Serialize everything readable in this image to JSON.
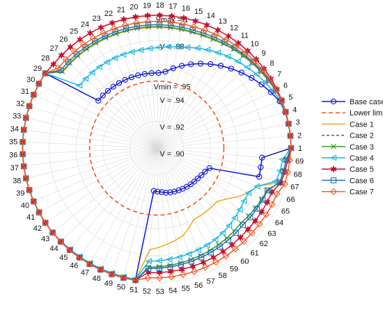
{
  "chart_data": {
    "type": "polar-line",
    "title": "",
    "theta_labels": [
      "1",
      "2",
      "3",
      "4",
      "5",
      "6",
      "7",
      "8",
      "9",
      "10",
      "11",
      "12",
      "13",
      "14",
      "15",
      "16",
      "17",
      "18",
      "19",
      "20",
      "21",
      "22",
      "23",
      "24",
      "25",
      "26",
      "27",
      "28",
      "29",
      "30",
      "31",
      "32",
      "33",
      "34",
      "35",
      "36",
      "37",
      "38",
      "39",
      "40",
      "41",
      "42",
      "43",
      "44",
      "45",
      "46",
      "47",
      "48",
      "49",
      "50",
      "51",
      "52",
      "53",
      "54",
      "55",
      "56",
      "57",
      "58",
      "59",
      "60",
      "61",
      "62",
      "63",
      "64",
      "65",
      "66",
      "67",
      "68",
      "69"
    ],
    "rlim": [
      0.9,
      1.0
    ],
    "ring_labels": [
      {
        "value": 1.0,
        "text": "Vmax = 1"
      },
      {
        "value": 0.98,
        "text": "V = .98"
      },
      {
        "value": 0.95,
        "text": "Vmin = .95"
      },
      {
        "value": 0.94,
        "text": "V = .94"
      },
      {
        "value": 0.92,
        "text": "V = .92"
      },
      {
        "value": 0.9,
        "text": "V = .90"
      }
    ],
    "grid": true,
    "legend_position": "right",
    "series": [
      {
        "name": "Base case",
        "color": "#0a14d8",
        "marker": "circle",
        "dash": "",
        "values": [
          1,
          0.9999,
          0.9997,
          0.9993,
          0.9979,
          0.9946,
          0.9913,
          0.9879,
          0.9845,
          0.9811,
          0.9777,
          0.9743,
          0.9709,
          0.9675,
          0.9641,
          0.9607,
          0.9573,
          0.956,
          0.956,
          0.956,
          0.956,
          0.956,
          0.956,
          0.956,
          0.956,
          0.956,
          0.956,
          0.956,
          0.9999,
          0.9999,
          0.9998,
          0.9998,
          0.9998,
          0.9998,
          0.9998,
          0.9998,
          0.9998,
          0.9998,
          0.9998,
          0.9998,
          0.9998,
          0.9998,
          0.9998,
          0.9998,
          0.9998,
          0.9998,
          0.9998,
          0.9998,
          0.9998,
          0.9998,
          0.9998,
          0.932,
          0.9325,
          0.933,
          0.934,
          0.9345,
          0.935,
          0.9355,
          0.936,
          0.9365,
          0.937,
          0.9375,
          0.938,
          0.939,
          0.94,
          0.942,
          0.9792,
          0.9787,
          0.9787
        ]
      },
      {
        "name": "Lower limit",
        "color": "#f0531f",
        "marker": "",
        "dash": "6,4",
        "values": [
          0.95,
          0.95,
          0.95,
          0.95,
          0.95,
          0.95,
          0.95,
          0.95,
          0.95,
          0.95,
          0.95,
          0.95,
          0.95,
          0.95,
          0.95,
          0.95,
          0.95,
          0.95,
          0.95,
          0.95,
          0.95,
          0.95,
          0.95,
          0.95,
          0.95,
          0.95,
          0.95,
          0.95,
          0.95,
          0.95,
          0.95,
          0.95,
          0.95,
          0.95,
          0.95,
          0.95,
          0.95,
          0.95,
          0.95,
          0.95,
          0.95,
          0.95,
          0.95,
          0.95,
          0.95,
          0.95,
          0.95,
          0.95,
          0.95,
          0.95,
          0.95,
          0.95,
          0.95,
          0.95,
          0.95,
          0.95,
          0.95,
          0.95,
          0.95,
          0.95,
          0.95,
          0.95,
          0.95,
          0.95,
          0.95,
          0.95,
          0.95,
          0.95,
          0.95
        ]
      },
      {
        "name": "Case 1",
        "color": "#f4a418",
        "marker": "",
        "dash": "",
        "values": [
          1,
          0.9999,
          0.9998,
          0.9997,
          0.9995,
          0.9985,
          0.997,
          0.996,
          0.995,
          0.994,
          0.993,
          0.992,
          0.991,
          0.9905,
          0.99,
          0.99,
          0.99,
          0.99,
          0.99,
          0.99,
          0.99,
          0.99,
          0.99,
          0.99,
          0.99,
          0.99,
          0.99,
          0.99,
          0.9999,
          0.9999,
          0.9998,
          0.9998,
          0.9998,
          0.9998,
          0.9998,
          0.9998,
          0.9998,
          0.9998,
          0.9998,
          0.9998,
          0.9998,
          0.9998,
          0.9998,
          0.9999,
          0.9999,
          0.9999,
          0.9999,
          0.9999,
          0.9999,
          0.9999,
          0.9999,
          0.976,
          0.974,
          0.972,
          0.97,
          0.968,
          0.964,
          0.96,
          0.96,
          0.96,
          0.96,
          0.96,
          0.964,
          0.97,
          0.976,
          0.98,
          0.995,
          0.996,
          0.997
        ]
      },
      {
        "name": "Case 2",
        "color": "#8b2f9a",
        "marker": "",
        "dash": "4,3",
        "values": [
          1,
          0.9999,
          0.9998,
          0.9997,
          0.9995,
          0.9985,
          0.9975,
          0.9965,
          0.9955,
          0.9945,
          0.9935,
          0.9925,
          0.9915,
          0.991,
          0.9905,
          0.9905,
          0.9905,
          0.9905,
          0.9905,
          0.9905,
          0.9905,
          0.9905,
          0.9905,
          0.9905,
          0.9905,
          0.9905,
          0.9905,
          0.9905,
          0.9999,
          0.9999,
          0.9998,
          0.9998,
          0.9998,
          0.9998,
          0.9998,
          0.9998,
          0.9998,
          0.9998,
          0.9998,
          0.9998,
          0.9998,
          0.9998,
          0.9998,
          0.9998,
          0.9998,
          0.9998,
          0.9998,
          0.9998,
          0.9998,
          0.9998,
          0.9998,
          0.989,
          0.9885,
          0.988,
          0.9875,
          0.987,
          0.9865,
          0.986,
          0.9855,
          0.985,
          0.9845,
          0.984,
          0.985,
          0.986,
          0.987,
          0.988,
          0.995,
          0.996,
          0.997
        ]
      },
      {
        "name": "Case 3",
        "color": "#3a9a2a",
        "marker": "x",
        "dash": "",
        "values": [
          1,
          0.9999,
          0.9998,
          0.9997,
          0.9995,
          0.9985,
          0.9975,
          0.9965,
          0.9955,
          0.9945,
          0.9935,
          0.9925,
          0.9915,
          0.991,
          0.9905,
          0.9905,
          0.9905,
          0.9905,
          0.9905,
          0.9905,
          0.9905,
          0.9905,
          0.9905,
          0.9905,
          0.9905,
          0.9905,
          0.9905,
          0.9905,
          0.9999,
          0.9999,
          0.9998,
          0.9998,
          0.9998,
          0.9998,
          0.9998,
          0.9998,
          0.9998,
          0.9998,
          0.9998,
          0.9998,
          0.9998,
          0.9998,
          0.9998,
          0.9998,
          0.9998,
          0.9998,
          0.9998,
          0.9998,
          0.9998,
          0.9998,
          0.9998,
          0.989,
          0.9885,
          0.988,
          0.9875,
          0.987,
          0.9865,
          0.986,
          0.9855,
          0.985,
          0.9845,
          0.984,
          0.985,
          0.986,
          0.987,
          0.988,
          0.995,
          0.996,
          0.997
        ]
      },
      {
        "name": "Case 4",
        "color": "#19b7e0",
        "marker": "triangle-left",
        "dash": "",
        "values": [
          1,
          0.9999,
          0.9997,
          0.9994,
          0.9985,
          0.9965,
          0.9945,
          0.9925,
          0.9905,
          0.9885,
          0.9865,
          0.9845,
          0.9825,
          0.9805,
          0.9785,
          0.977,
          0.976,
          0.975,
          0.9745,
          0.974,
          0.974,
          0.974,
          0.974,
          0.974,
          0.974,
          0.974,
          0.974,
          0.974,
          0.9999,
          0.9999,
          0.9998,
          0.9998,
          0.9998,
          0.9998,
          0.9998,
          0.9998,
          0.9998,
          0.9998,
          0.9998,
          0.9998,
          0.9998,
          0.9998,
          0.9998,
          0.9995,
          0.9992,
          0.999,
          0.999,
          0.999,
          0.999,
          0.999,
          0.999,
          0.9845,
          0.984,
          0.9835,
          0.983,
          0.9825,
          0.982,
          0.9815,
          0.981,
          0.98,
          0.979,
          0.978,
          0.977,
          0.976,
          0.976,
          0.98,
          0.992,
          0.9935,
          0.994
        ]
      },
      {
        "name": "Case 5",
        "color": "#c8102e",
        "marker": "star",
        "dash": "",
        "values": [
          1,
          0.9999,
          0.9998,
          0.9998,
          0.9997,
          0.9996,
          0.9995,
          0.9994,
          0.9993,
          0.9992,
          0.9991,
          0.999,
          0.999,
          0.999,
          0.999,
          0.999,
          0.999,
          0.999,
          0.999,
          0.999,
          0.999,
          0.999,
          0.999,
          0.999,
          0.999,
          0.999,
          0.999,
          0.999,
          0.9999,
          0.9999,
          0.9998,
          0.9998,
          0.9998,
          0.9998,
          0.9998,
          0.9998,
          0.9998,
          0.9998,
          0.9998,
          0.9998,
          0.9998,
          0.9998,
          0.9998,
          0.9998,
          0.9998,
          0.9998,
          0.9998,
          0.9998,
          0.9998,
          0.9998,
          0.9998,
          0.993,
          0.9928,
          0.9926,
          0.9924,
          0.9922,
          0.992,
          0.9918,
          0.9916,
          0.9914,
          0.9912,
          0.991,
          0.9912,
          0.9914,
          0.9916,
          0.9918,
          0.996,
          0.997,
          0.998
        ]
      },
      {
        "name": "Case 6",
        "color": "#1f6fb2",
        "marker": "square",
        "dash": "",
        "values": [
          1,
          0.9999,
          0.9998,
          0.9997,
          0.9994,
          0.9986,
          0.9978,
          0.997,
          0.9962,
          0.9954,
          0.9946,
          0.9938,
          0.993,
          0.9925,
          0.992,
          0.992,
          0.992,
          0.992,
          0.992,
          0.992,
          0.992,
          0.992,
          0.992,
          0.992,
          0.992,
          0.992,
          0.992,
          0.992,
          0.9999,
          0.9999,
          0.9998,
          0.9998,
          0.9998,
          0.9998,
          0.9998,
          0.9998,
          0.9998,
          0.9998,
          0.9998,
          0.9998,
          0.9998,
          0.9998,
          0.9998,
          0.9998,
          0.9998,
          0.9998,
          0.9998,
          0.9998,
          0.9998,
          0.9998,
          0.9998,
          0.99,
          0.9896,
          0.9892,
          0.9888,
          0.9884,
          0.988,
          0.9876,
          0.9872,
          0.9868,
          0.9864,
          0.986,
          0.9866,
          0.9872,
          0.9878,
          0.9884,
          0.995,
          0.996,
          0.997
        ]
      },
      {
        "name": "Case 7",
        "color": "#ef5b22",
        "marker": "diamond",
        "dash": "",
        "values": [
          1,
          0.9999,
          0.9998,
          0.9997,
          0.9995,
          0.999,
          0.9985,
          0.998,
          0.9975,
          0.997,
          0.9965,
          0.996,
          0.9955,
          0.995,
          0.9945,
          0.9945,
          0.9945,
          0.9945,
          0.9945,
          0.9945,
          0.9945,
          0.9945,
          0.9945,
          0.9945,
          0.9945,
          0.9945,
          0.9945,
          0.9945,
          0.9999,
          0.9999,
          0.9998,
          0.9998,
          0.9998,
          0.9998,
          0.9998,
          0.9998,
          0.9998,
          0.9998,
          0.9998,
          0.9998,
          0.9998,
          0.9998,
          0.9998,
          0.9999,
          0.9999,
          0.9999,
          0.9999,
          0.9999,
          0.9999,
          0.9999,
          0.9999,
          0.997,
          0.9968,
          0.9966,
          0.9964,
          0.9962,
          0.996,
          0.9958,
          0.9956,
          0.9954,
          0.9952,
          0.995,
          0.9952,
          0.9954,
          0.9956,
          0.9958,
          0.999,
          0.9992,
          0.9994
        ]
      }
    ]
  }
}
